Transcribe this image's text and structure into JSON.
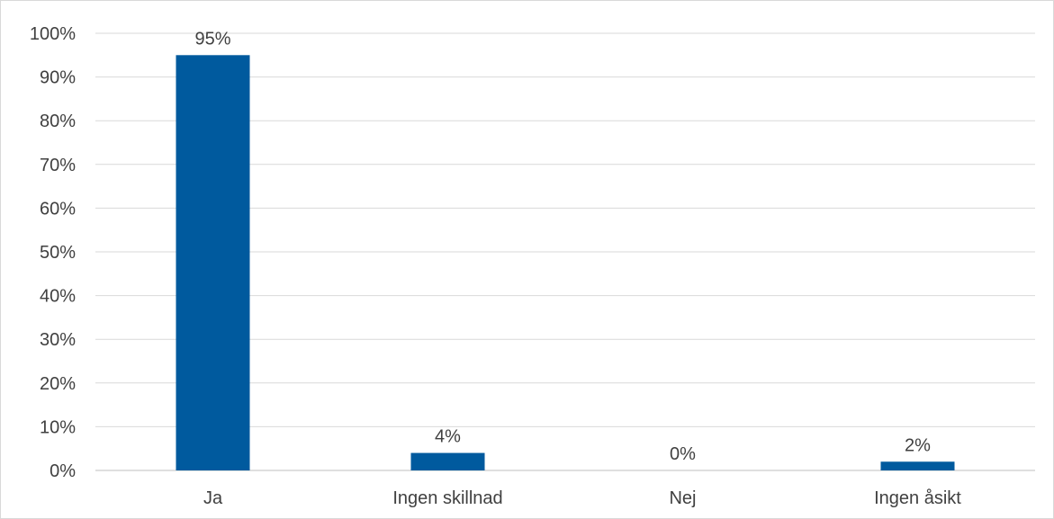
{
  "chart_data": {
    "type": "bar",
    "categories": [
      "Ja",
      "Ingen skillnad",
      "Nej",
      "Ingen åsikt"
    ],
    "values": [
      95,
      4,
      0,
      2
    ],
    "data_labels": [
      "95%",
      "4%",
      "0%",
      "2%"
    ],
    "ylim": [
      0,
      100
    ],
    "y_ticks": [
      0,
      10,
      20,
      30,
      40,
      50,
      60,
      70,
      80,
      90,
      100
    ],
    "y_tick_labels": [
      "0%",
      "10%",
      "20%",
      "30%",
      "40%",
      "50%",
      "60%",
      "70%",
      "80%",
      "90%",
      "100%"
    ],
    "grid": true,
    "legend": "none",
    "bar_color": "#005A9E",
    "title": "",
    "xlabel": "",
    "ylabel": ""
  }
}
